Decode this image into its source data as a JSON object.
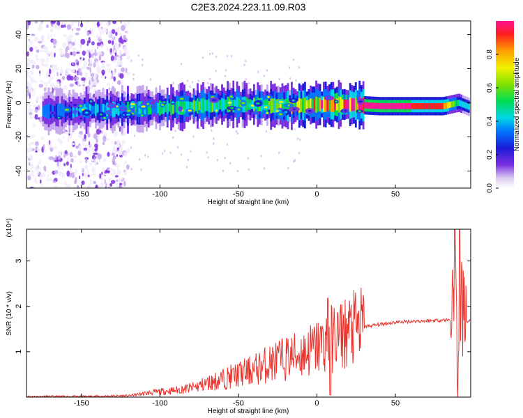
{
  "figure_title": "C2E3.2024.223.11.09.R03",
  "chart_data": [
    {
      "type": "heatmap",
      "xlabel": "Height of straight line (km)",
      "ylabel": "Frequency (Hz)",
      "xlim": [
        -185,
        98
      ],
      "ylim": [
        -50,
        48
      ],
      "xticks": [
        -150,
        -100,
        -50,
        0,
        50
      ],
      "yticks": [
        -40,
        -20,
        0,
        20,
        40
      ],
      "colorbar": {
        "label": "Normalized spectral amplitude",
        "range": [
          0,
          1
        ],
        "ticks": [
          "0.0",
          "0.2",
          "0.4",
          "0.6",
          "0.8"
        ]
      },
      "ridge": {
        "x": [
          -185,
          -160,
          -140,
          -120,
          -100,
          -80,
          -60,
          -40,
          -20,
          0,
          20,
          40,
          60,
          80,
          90,
          98
        ],
        "y": [
          -5,
          -5,
          -4,
          -4,
          -3,
          -2,
          -1,
          -1,
          -2,
          -1,
          -1,
          -2,
          -2,
          -2,
          0,
          -3
        ],
        "amplitude": [
          0.35,
          0.5,
          0.55,
          0.55,
          0.6,
          0.7,
          0.7,
          0.65,
          0.75,
          0.9,
          1.0,
          1.0,
          1.0,
          0.95,
          0.6,
          0.5
        ]
      },
      "grid": false
    },
    {
      "type": "line",
      "xlabel": "Height of straight line (km)",
      "ylabel": "SNR (10 * v/v)",
      "y_multiplier": "(x10⁴)",
      "xlim": [
        -185,
        98
      ],
      "ylim": [
        0,
        3.7
      ],
      "xticks": [
        -150,
        -100,
        -50,
        0,
        50
      ],
      "yticks": [
        1,
        2,
        3
      ],
      "series": [
        {
          "color": "#e8322c",
          "x": [
            -185,
            -150,
            -120,
            -110,
            -100,
            -90,
            -80,
            -70,
            -60,
            -50,
            -40,
            -30,
            -20,
            -10,
            0,
            10,
            20,
            30,
            40,
            50,
            60,
            70,
            80,
            85,
            88,
            90,
            92,
            95,
            98
          ],
          "y": [
            0.01,
            0.01,
            0.03,
            0.08,
            0.12,
            0.15,
            0.2,
            0.3,
            0.4,
            0.5,
            0.6,
            0.75,
            0.85,
            0.95,
            1.1,
            1.3,
            1.45,
            1.55,
            1.6,
            1.65,
            1.67,
            1.68,
            1.7,
            1.7,
            3.1,
            0.3,
            1.9,
            1.65,
            1.7
          ]
        }
      ]
    }
  ]
}
